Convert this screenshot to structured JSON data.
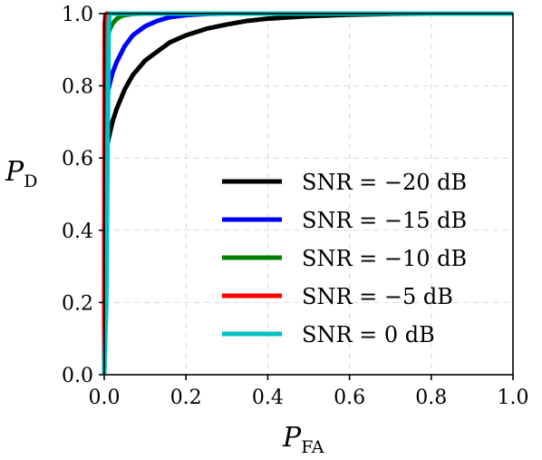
{
  "chart_data": {
    "type": "line",
    "title": "",
    "xlabel": {
      "main": "P",
      "sub": "FA"
    },
    "ylabel": {
      "main": "P",
      "sub": "D"
    },
    "xlim": [
      0,
      1
    ],
    "ylim": [
      0,
      1
    ],
    "xticks": [
      "0.0",
      "0.2",
      "0.4",
      "0.6",
      "0.8",
      "1.0"
    ],
    "yticks": [
      "0.0",
      "0.2",
      "0.4",
      "0.6",
      "0.8",
      "1.0"
    ],
    "grid": true,
    "legend_position": "center-right",
    "series": [
      {
        "name": "SNR = −20 dB",
        "color": "#000000",
        "points": [
          [
            0,
            0
          ],
          [
            0.001,
            0.55
          ],
          [
            0.005,
            0.62
          ],
          [
            0.01,
            0.65
          ],
          [
            0.02,
            0.7
          ],
          [
            0.03,
            0.735
          ],
          [
            0.05,
            0.79
          ],
          [
            0.07,
            0.83
          ],
          [
            0.1,
            0.87
          ],
          [
            0.13,
            0.895
          ],
          [
            0.16,
            0.92
          ],
          [
            0.2,
            0.94
          ],
          [
            0.25,
            0.958
          ],
          [
            0.3,
            0.97
          ],
          [
            0.35,
            0.98
          ],
          [
            0.4,
            0.986
          ],
          [
            0.5,
            0.993
          ],
          [
            0.6,
            0.997
          ],
          [
            0.7,
            0.999
          ],
          [
            0.8,
            1.0
          ],
          [
            0.9,
            1.0
          ],
          [
            1.0,
            1.0
          ]
        ]
      },
      {
        "name": "SNR = −15 dB",
        "color": "#0000ff",
        "points": [
          [
            0,
            0
          ],
          [
            0.001,
            0.72
          ],
          [
            0.005,
            0.76
          ],
          [
            0.01,
            0.79
          ],
          [
            0.02,
            0.835
          ],
          [
            0.03,
            0.865
          ],
          [
            0.05,
            0.91
          ],
          [
            0.07,
            0.94
          ],
          [
            0.1,
            0.965
          ],
          [
            0.13,
            0.98
          ],
          [
            0.16,
            0.99
          ],
          [
            0.2,
            0.996
          ],
          [
            0.25,
            0.999
          ],
          [
            0.3,
            1.0
          ],
          [
            0.5,
            1.0
          ],
          [
            1.0,
            1.0
          ]
        ]
      },
      {
        "name": "SNR = −10 dB",
        "color": "#008000",
        "points": [
          [
            0,
            0
          ],
          [
            0.002,
            0.9
          ],
          [
            0.005,
            0.925
          ],
          [
            0.01,
            0.945
          ],
          [
            0.015,
            0.96
          ],
          [
            0.02,
            0.972
          ],
          [
            0.03,
            0.985
          ],
          [
            0.04,
            0.992
          ],
          [
            0.05,
            0.996
          ],
          [
            0.07,
            0.999
          ],
          [
            0.1,
            1.0
          ],
          [
            0.5,
            1.0
          ],
          [
            1.0,
            1.0
          ]
        ]
      },
      {
        "name": "SNR = −5 dB",
        "color": "#ff0000",
        "points": [
          [
            0,
            0
          ],
          [
            0.001,
            0.97
          ],
          [
            0.003,
            0.995
          ],
          [
            0.006,
            1.0
          ],
          [
            1.0,
            1.0
          ]
        ]
      },
      {
        "name": "SNR = 0 dB",
        "color": "#00c0c0",
        "points": [
          [
            0,
            0
          ],
          [
            0.005,
            0.2
          ],
          [
            0.008,
            0.6
          ],
          [
            0.011,
            0.97
          ],
          [
            0.013,
            1.0
          ],
          [
            1.0,
            1.0
          ]
        ]
      }
    ]
  }
}
